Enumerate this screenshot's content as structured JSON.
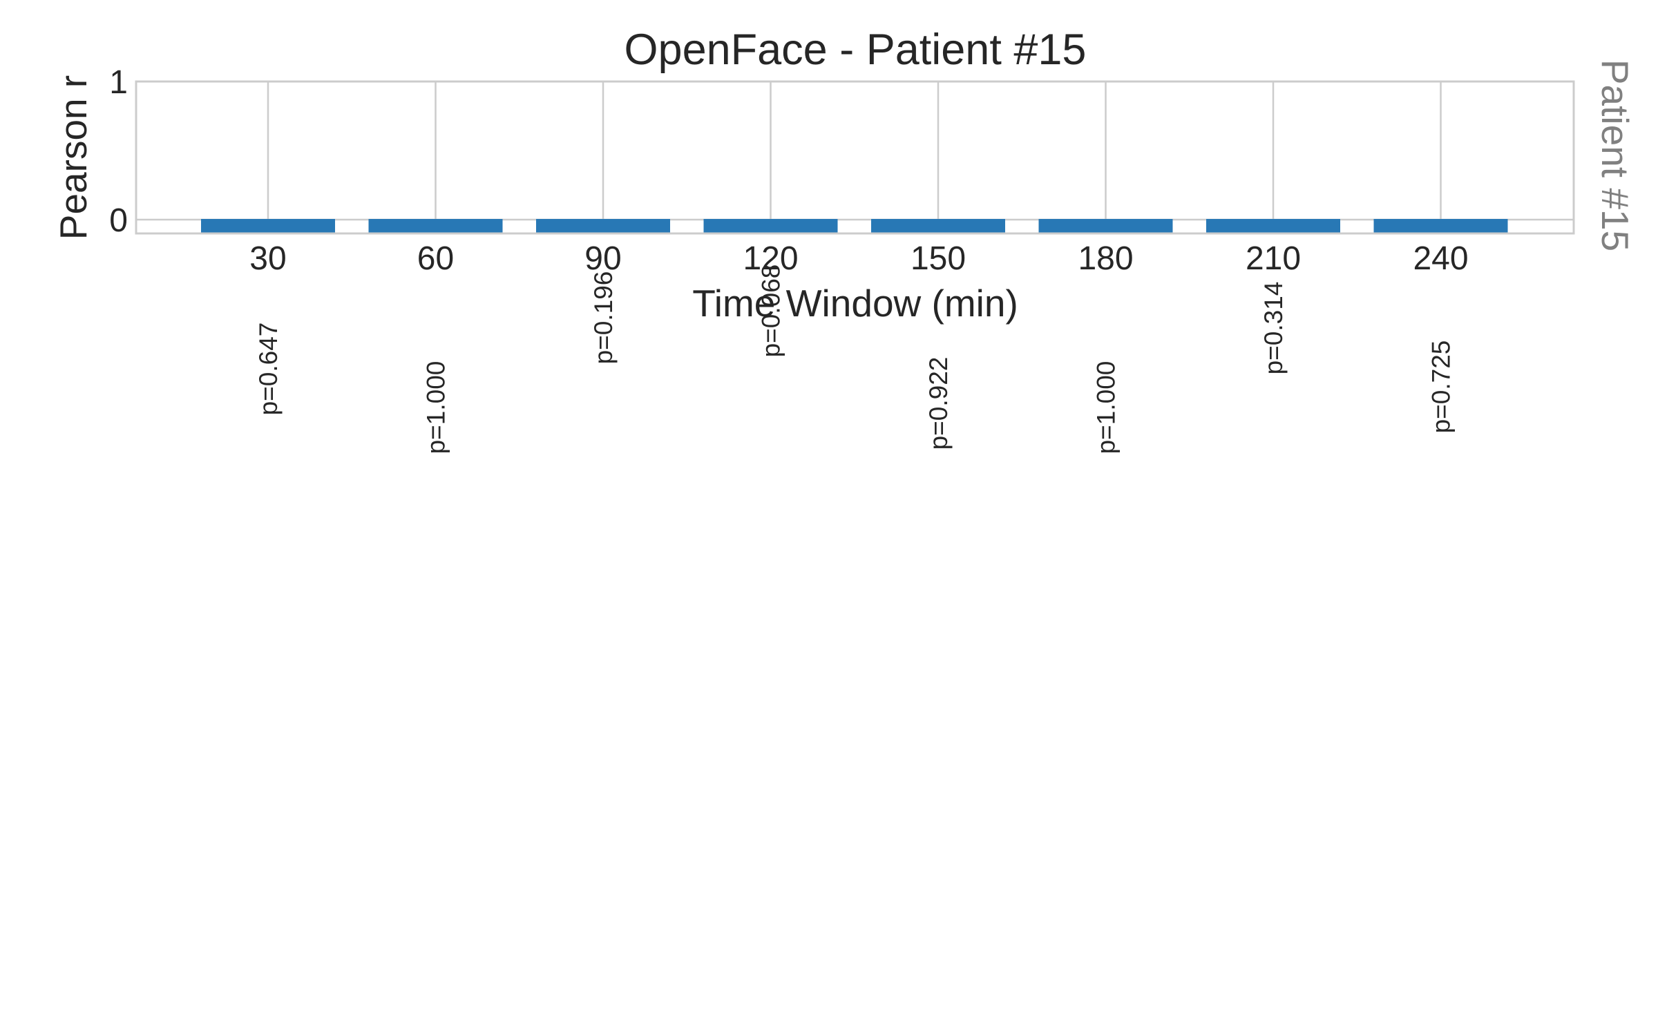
{
  "chart_data": {
    "type": "bar",
    "title": "OpenFace - Patient #15",
    "xlabel": "Time Window (min)",
    "ylabel": "Pearson r",
    "side_label": "Patient #15",
    "categories": [
      "30",
      "60",
      "90",
      "120",
      "150",
      "180",
      "210",
      "240"
    ],
    "values": [
      0,
      0,
      0,
      0,
      0,
      0,
      0,
      0
    ],
    "annotations": [
      "p=0.647",
      "p=1.000",
      "p=0.196",
      "p=0.068",
      "p=0.922",
      "p=1.000",
      "p=0.314",
      "p=0.725"
    ],
    "ylim": [
      -0.1,
      1
    ],
    "yticks": [
      "0",
      "1"
    ],
    "grid": true,
    "bar_color": "#2878b5",
    "grid_color": "#cccccc"
  }
}
